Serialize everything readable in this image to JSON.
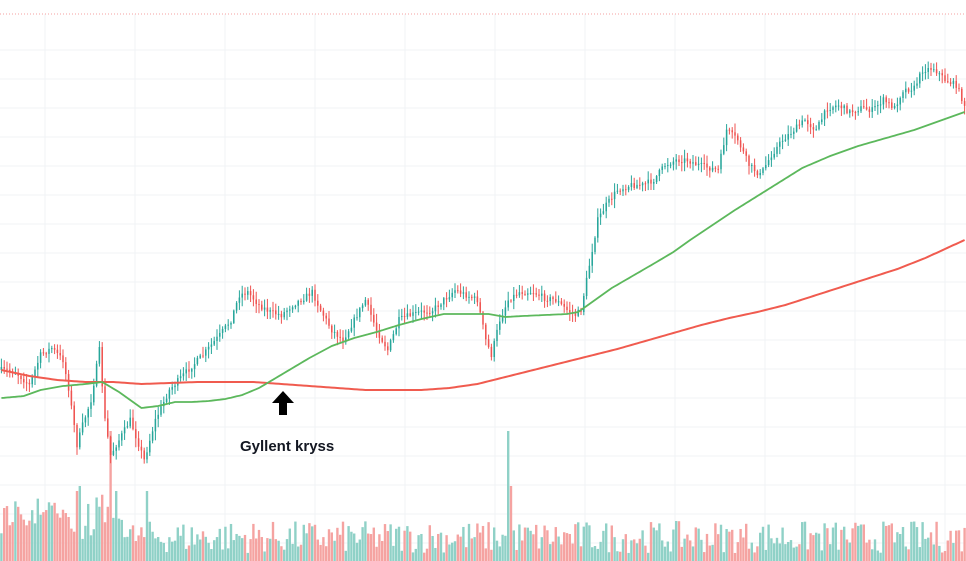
{
  "chart_data": {
    "type": "candlestick",
    "title": "",
    "xlabel": "",
    "ylabel": "",
    "grid": true,
    "legend": "none",
    "annotation": {
      "text": "Gyllent kryss",
      "icon": "arrow-up-icon",
      "at_index": 97
    },
    "colors": {
      "up": "#26a69a",
      "down": "#ef5350",
      "up_volume": "#8fd1c7",
      "down_volume": "#f5a3a1",
      "ma_fast": "#5cb85c",
      "ma_slow": "#f05b4f",
      "grid": "#f1f3f6",
      "top_border": "#f4a0a0"
    },
    "price_keypoints": [
      [
        0,
        370
      ],
      [
        5,
        372
      ],
      [
        10,
        385
      ],
      [
        14,
        355
      ],
      [
        18,
        348
      ],
      [
        22,
        360
      ],
      [
        24,
        388
      ],
      [
        27,
        445
      ],
      [
        29,
        425
      ],
      [
        32,
        400
      ],
      [
        35,
        350
      ],
      [
        37,
        420
      ],
      [
        39,
        455
      ],
      [
        42,
        440
      ],
      [
        46,
        420
      ],
      [
        51,
        460
      ],
      [
        55,
        420
      ],
      [
        60,
        390
      ],
      [
        66,
        372
      ],
      [
        72,
        355
      ],
      [
        78,
        335
      ],
      [
        82,
        320
      ],
      [
        85,
        295
      ],
      [
        88,
        292
      ],
      [
        92,
        305
      ],
      [
        96,
        312
      ],
      [
        100,
        315
      ],
      [
        104,
        305
      ],
      [
        108,
        298
      ],
      [
        111,
        292
      ],
      [
        114,
        310
      ],
      [
        118,
        330
      ],
      [
        122,
        340
      ],
      [
        126,
        320
      ],
      [
        130,
        300
      ],
      [
        134,
        330
      ],
      [
        138,
        350
      ],
      [
        142,
        320
      ],
      [
        146,
        315
      ],
      [
        150,
        312
      ],
      [
        154,
        310
      ],
      [
        158,
        300
      ],
      [
        162,
        290
      ],
      [
        166,
        295
      ],
      [
        170,
        300
      ],
      [
        173,
        340
      ],
      [
        175,
        355
      ],
      [
        178,
        320
      ],
      [
        181,
        300
      ],
      [
        185,
        292
      ],
      [
        190,
        292
      ],
      [
        194,
        298
      ],
      [
        198,
        300
      ],
      [
        202,
        310
      ],
      [
        205,
        315
      ],
      [
        207,
        310
      ],
      [
        210,
        265
      ],
      [
        213,
        220
      ],
      [
        216,
        205
      ],
      [
        220,
        190
      ],
      [
        225,
        185
      ],
      [
        229,
        185
      ],
      [
        233,
        180
      ],
      [
        237,
        165
      ],
      [
        241,
        160
      ],
      [
        245,
        160
      ],
      [
        249,
        165
      ],
      [
        253,
        168
      ],
      [
        256,
        170
      ],
      [
        259,
        130
      ],
      [
        263,
        140
      ],
      [
        267,
        165
      ],
      [
        271,
        175
      ],
      [
        275,
        155
      ],
      [
        279,
        140
      ],
      [
        283,
        130
      ],
      [
        287,
        120
      ],
      [
        291,
        130
      ],
      [
        295,
        108
      ],
      [
        299,
        105
      ],
      [
        303,
        112
      ],
      [
        307,
        108
      ],
      [
        311,
        110
      ],
      [
        315,
        100
      ],
      [
        319,
        108
      ],
      [
        322,
        90
      ],
      [
        326,
        88
      ],
      [
        329,
        70
      ],
      [
        333,
        68
      ],
      [
        337,
        80
      ],
      [
        341,
        85
      ],
      [
        344,
        105
      ]
    ],
    "ma_fast_keypoints": [
      [
        0,
        398
      ],
      [
        8,
        396
      ],
      [
        14,
        390
      ],
      [
        22,
        386
      ],
      [
        30,
        384
      ],
      [
        36,
        382
      ],
      [
        42,
        392
      ],
      [
        50,
        408
      ],
      [
        56,
        406
      ],
      [
        62,
        402
      ],
      [
        68,
        402
      ],
      [
        74,
        401
      ],
      [
        80,
        399
      ],
      [
        86,
        395
      ],
      [
        92,
        388
      ],
      [
        98,
        378
      ],
      [
        104,
        368
      ],
      [
        110,
        358
      ],
      [
        118,
        346
      ],
      [
        126,
        338
      ],
      [
        134,
        332
      ],
      [
        142,
        325
      ],
      [
        150,
        319
      ],
      [
        158,
        314
      ],
      [
        166,
        314
      ],
      [
        174,
        314
      ],
      [
        180,
        317
      ],
      [
        186,
        316
      ],
      [
        194,
        315
      ],
      [
        202,
        314
      ],
      [
        206,
        312
      ],
      [
        212,
        300
      ],
      [
        218,
        288
      ],
      [
        226,
        275
      ],
      [
        234,
        262
      ],
      [
        240,
        252
      ],
      [
        246,
        240
      ],
      [
        254,
        225
      ],
      [
        262,
        210
      ],
      [
        270,
        196
      ],
      [
        278,
        182
      ],
      [
        286,
        168
      ],
      [
        296,
        156
      ],
      [
        306,
        146
      ],
      [
        316,
        138
      ],
      [
        326,
        130
      ],
      [
        336,
        120
      ],
      [
        344,
        112
      ]
    ],
    "ma_slow_keypoints": [
      [
        0,
        370
      ],
      [
        10,
        376
      ],
      [
        20,
        380
      ],
      [
        30,
        382
      ],
      [
        40,
        382
      ],
      [
        50,
        384
      ],
      [
        60,
        383
      ],
      [
        70,
        382
      ],
      [
        80,
        382
      ],
      [
        90,
        382
      ],
      [
        100,
        384
      ],
      [
        110,
        386
      ],
      [
        120,
        388
      ],
      [
        130,
        390
      ],
      [
        140,
        390
      ],
      [
        150,
        390
      ],
      [
        160,
        388
      ],
      [
        170,
        384
      ],
      [
        180,
        377
      ],
      [
        190,
        370
      ],
      [
        200,
        363
      ],
      [
        210,
        356
      ],
      [
        220,
        349
      ],
      [
        230,
        341
      ],
      [
        240,
        333
      ],
      [
        250,
        325
      ],
      [
        260,
        318
      ],
      [
        270,
        312
      ],
      [
        280,
        305
      ],
      [
        290,
        296
      ],
      [
        300,
        287
      ],
      [
        310,
        278
      ],
      [
        320,
        269
      ],
      [
        330,
        258
      ],
      [
        344,
        240
      ]
    ],
    "volume_spikes": [
      [
        39,
        130
      ],
      [
        41,
        70
      ],
      [
        52,
        70
      ],
      [
        181,
        130
      ],
      [
        182,
        75
      ],
      [
        27,
        70
      ],
      [
        28,
        75
      ]
    ]
  }
}
